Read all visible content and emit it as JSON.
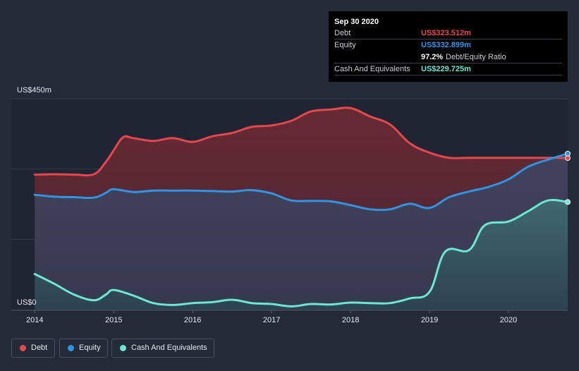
{
  "chart_data": {
    "type": "area",
    "title": "",
    "ylabel": "",
    "ylim": [
      0,
      450
    ],
    "y_ticks": [
      {
        "value": 450,
        "label": "US$450m"
      },
      {
        "value": 0,
        "label": "US$0"
      }
    ],
    "x_ticks": [
      {
        "value": 2014,
        "label": "2014"
      },
      {
        "value": 2015,
        "label": "2015"
      },
      {
        "value": 2016,
        "label": "2016"
      },
      {
        "value": 2017,
        "label": "2017"
      },
      {
        "value": 2018,
        "label": "2018"
      },
      {
        "value": 2019,
        "label": "2019"
      },
      {
        "value": 2020,
        "label": "2020"
      }
    ],
    "xlim": [
      2013.98,
      2020.75
    ],
    "series": [
      {
        "name": "Debt",
        "color": "#e8464f",
        "points": [
          [
            2014.0,
            288
          ],
          [
            2014.25,
            289
          ],
          [
            2014.5,
            288
          ],
          [
            2014.75,
            289
          ],
          [
            2014.9,
            315
          ],
          [
            2015.0,
            340
          ],
          [
            2015.12,
            368
          ],
          [
            2015.25,
            366
          ],
          [
            2015.5,
            360
          ],
          [
            2015.75,
            366
          ],
          [
            2016.0,
            358
          ],
          [
            2016.25,
            370
          ],
          [
            2016.5,
            377
          ],
          [
            2016.75,
            390
          ],
          [
            2017.0,
            393
          ],
          [
            2017.25,
            403
          ],
          [
            2017.5,
            423
          ],
          [
            2017.75,
            427
          ],
          [
            2018.0,
            430
          ],
          [
            2018.25,
            412
          ],
          [
            2018.5,
            395
          ],
          [
            2018.75,
            355
          ],
          [
            2019.0,
            335
          ],
          [
            2019.25,
            324
          ],
          [
            2019.5,
            324
          ],
          [
            2019.75,
            324
          ],
          [
            2020.0,
            324
          ],
          [
            2020.25,
            324
          ],
          [
            2020.5,
            324
          ],
          [
            2020.75,
            323.5
          ]
        ]
      },
      {
        "name": "Equity",
        "color": "#2f94e6",
        "points": [
          [
            2014.0,
            245
          ],
          [
            2014.25,
            241
          ],
          [
            2014.5,
            240
          ],
          [
            2014.75,
            239
          ],
          [
            2014.9,
            249
          ],
          [
            2015.0,
            257
          ],
          [
            2015.25,
            251
          ],
          [
            2015.5,
            254
          ],
          [
            2015.75,
            254
          ],
          [
            2016.0,
            254
          ],
          [
            2016.25,
            253
          ],
          [
            2016.5,
            252
          ],
          [
            2016.75,
            255
          ],
          [
            2017.0,
            248
          ],
          [
            2017.25,
            233
          ],
          [
            2017.5,
            232
          ],
          [
            2017.75,
            231
          ],
          [
            2018.0,
            223
          ],
          [
            2018.25,
            214
          ],
          [
            2018.5,
            214
          ],
          [
            2018.75,
            226
          ],
          [
            2019.0,
            217
          ],
          [
            2019.25,
            240
          ],
          [
            2019.5,
            252
          ],
          [
            2019.75,
            262
          ],
          [
            2020.0,
            278
          ],
          [
            2020.25,
            305
          ],
          [
            2020.5,
            320
          ],
          [
            2020.75,
            332.9
          ]
        ]
      },
      {
        "name": "Cash And Equivalents",
        "color": "#6ce7d4",
        "points": [
          [
            2014.0,
            76
          ],
          [
            2014.25,
            55
          ],
          [
            2014.5,
            32
          ],
          [
            2014.75,
            20
          ],
          [
            2014.9,
            32
          ],
          [
            2015.0,
            42
          ],
          [
            2015.25,
            30
          ],
          [
            2015.5,
            14
          ],
          [
            2015.75,
            10
          ],
          [
            2016.0,
            14
          ],
          [
            2016.25,
            16
          ],
          [
            2016.5,
            21
          ],
          [
            2016.75,
            14
          ],
          [
            2017.0,
            12
          ],
          [
            2017.25,
            7
          ],
          [
            2017.5,
            12
          ],
          [
            2017.75,
            11
          ],
          [
            2018.0,
            15
          ],
          [
            2018.25,
            14
          ],
          [
            2018.5,
            14
          ],
          [
            2018.75,
            24
          ],
          [
            2019.0,
            38
          ],
          [
            2019.2,
            124
          ],
          [
            2019.5,
            127
          ],
          [
            2019.7,
            180
          ],
          [
            2020.0,
            188
          ],
          [
            2020.25,
            210
          ],
          [
            2020.5,
            233
          ],
          [
            2020.75,
            229.7
          ]
        ]
      }
    ],
    "tooltip": {
      "date": "Sep 30 2020",
      "rows": [
        {
          "label": "Debt",
          "value": "US$323.512m",
          "color": "#e8464f"
        },
        {
          "label": "Equity",
          "value": "US$332.899m",
          "color": "#2f94e6"
        },
        {
          "label": "",
          "value": "97.2%",
          "suffix": "Debt/Equity Ratio",
          "color": "#ffffff"
        },
        {
          "label": "Cash And Equivalents",
          "value": "US$229.725m",
          "color": "#6ce7d4"
        }
      ]
    },
    "legend": [
      {
        "label": "Debt",
        "color": "#e8464f"
      },
      {
        "label": "Equity",
        "color": "#2f94e6"
      },
      {
        "label": "Cash And Equivalents",
        "color": "#6ce7d4"
      }
    ]
  }
}
